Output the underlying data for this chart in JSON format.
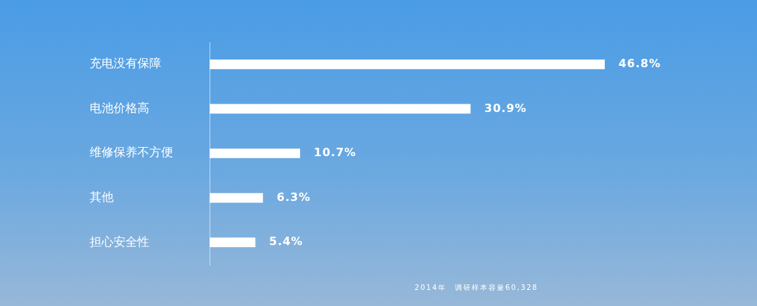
{
  "chart_data": {
    "type": "bar",
    "orientation": "horizontal",
    "categories": [
      "充电没有保障",
      "电池价格高",
      "维修保养不方便",
      "其他",
      "担心安全性"
    ],
    "values": [
      46.8,
      30.9,
      10.7,
      6.3,
      5.4
    ],
    "value_labels": [
      "46.8%",
      "30.9%",
      "10.7%",
      "6.3%",
      "5.4%"
    ],
    "color": "#ffffff",
    "tick_labels": "y",
    "grid": false,
    "legend": false,
    "annotations": [
      "2014年　调研样本容量60,328"
    ]
  }
}
